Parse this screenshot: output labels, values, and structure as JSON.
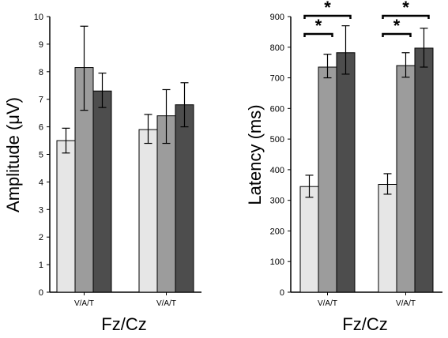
{
  "chart_data": [
    {
      "type": "bar",
      "title": "",
      "ylabel": "Amplitude (μV)",
      "xlabel": "Fz/Cz",
      "ylim": [
        0,
        10
      ],
      "yticks": [
        0,
        1,
        2,
        3,
        4,
        5,
        6,
        7,
        8,
        9,
        10
      ],
      "categories": [
        "V/A/T",
        "V/A/T"
      ],
      "series": [
        {
          "color": "#e6e6e6",
          "values": [
            5.5,
            5.9
          ],
          "err_low": [
            5.05,
            5.4
          ],
          "err_high": [
            5.95,
            6.45
          ]
        },
        {
          "color": "#9c9c9c",
          "values": [
            8.15,
            6.4
          ],
          "err_low": [
            6.6,
            5.4
          ],
          "err_high": [
            9.65,
            7.35
          ]
        },
        {
          "color": "#4d4d4d",
          "values": [
            7.3,
            6.8
          ],
          "err_low": [
            6.7,
            6.0
          ],
          "err_high": [
            7.95,
            7.6
          ]
        }
      ],
      "grid": false
    },
    {
      "type": "bar",
      "title": "",
      "ylabel": "Latency (ms)",
      "xlabel": "Fz/Cz",
      "ylim": [
        0,
        900
      ],
      "yticks": [
        0,
        100,
        200,
        300,
        400,
        500,
        600,
        700,
        800,
        900
      ],
      "categories": [
        "V/A/T",
        "V/A/T"
      ],
      "series": [
        {
          "color": "#e6e6e6",
          "values": [
            345,
            352
          ],
          "err_low": [
            310,
            320
          ],
          "err_high": [
            382,
            387
          ]
        },
        {
          "color": "#9c9c9c",
          "values": [
            735,
            740
          ],
          "err_low": [
            700,
            702
          ],
          "err_high": [
            777,
            782
          ]
        },
        {
          "color": "#4d4d4d",
          "values": [
            782,
            797
          ],
          "err_low": [
            712,
            735
          ],
          "err_high": [
            870,
            862
          ]
        }
      ],
      "annotations": [
        "*",
        "*",
        "*",
        "*"
      ],
      "grid": false
    }
  ]
}
